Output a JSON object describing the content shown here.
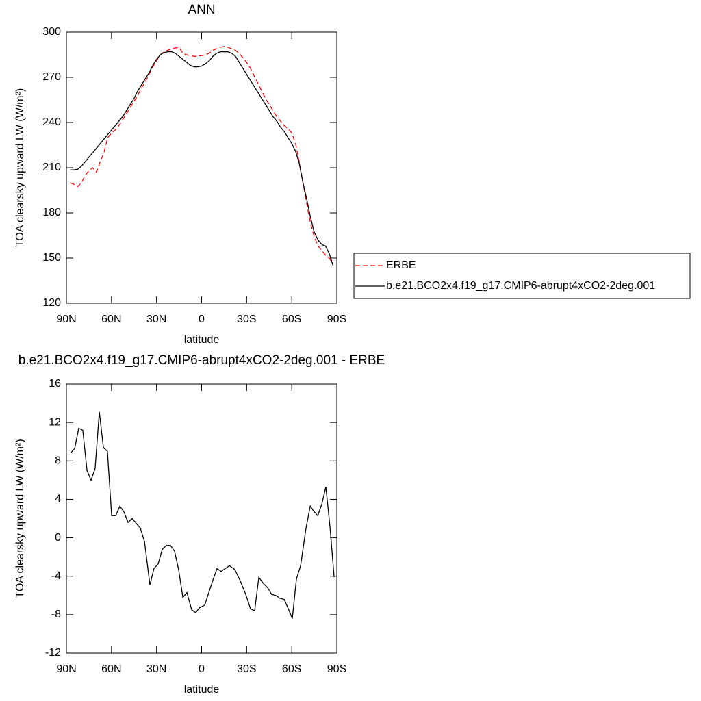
{
  "chart_data": [
    {
      "type": "line",
      "title": "ANN",
      "x_label": "latitude",
      "y_label": "TOA clearsky upward LW (W/m²)",
      "x": [
        87.5,
        85,
        82.5,
        80,
        77.5,
        75,
        72.5,
        70,
        67.5,
        65,
        62.5,
        60,
        57.5,
        55,
        52.5,
        50,
        47.5,
        45,
        42.5,
        40,
        37.5,
        35,
        32.5,
        30,
        27.5,
        25,
        22.5,
        20,
        17.5,
        15,
        12.5,
        10,
        7.5,
        5,
        2.5,
        0,
        -2.5,
        -5,
        -7.5,
        -10,
        -12.5,
        -15,
        -17.5,
        -20,
        -22.5,
        -25,
        -27.5,
        -30,
        -32.5,
        -35,
        -37.5,
        -40,
        -42.5,
        -45,
        -47.5,
        -50,
        -52.5,
        -55,
        -57.5,
        -60,
        -62.5,
        -65,
        -67.5,
        -70,
        -72.5,
        -75,
        -77.5,
        -80,
        -82.5,
        -85,
        -87.5
      ],
      "series": [
        {
          "name": "ERBE",
          "color": "#ff0000",
          "linestyle": "dashed",
          "values": [
            200,
            199,
            197.5,
            200,
            205,
            208,
            210,
            207,
            214,
            220,
            230,
            233,
            235,
            238,
            242,
            246,
            250,
            254,
            258,
            263,
            267,
            272,
            277,
            281,
            285,
            287,
            288,
            289,
            289.5,
            290,
            286,
            285,
            284.5,
            284,
            284,
            284.5,
            285,
            286,
            288,
            289,
            290,
            290.5,
            290,
            289,
            288,
            286,
            283,
            280,
            276,
            271,
            266,
            261,
            256,
            252,
            248,
            244,
            241,
            238,
            236,
            233,
            226,
            214,
            200,
            186,
            173,
            164,
            158,
            155,
            152,
            150,
            146
          ]
        },
        {
          "name": "b.e21.BCO2x4.f19_g17.CMIP6-abrupt4xCO2-2deg.001",
          "color": "#000000",
          "linestyle": "solid",
          "values": [
            208.6,
            208.6,
            209,
            211,
            214,
            217,
            220,
            223,
            226,
            229,
            232,
            235,
            238,
            241,
            244,
            248,
            252,
            256,
            261,
            265,
            269,
            273,
            278,
            282,
            285,
            286.5,
            287,
            287,
            286,
            284,
            282,
            280,
            278,
            277,
            277,
            277.5,
            279,
            281,
            284,
            286,
            287,
            287,
            287,
            286,
            284,
            280,
            276,
            272,
            268,
            264,
            260,
            256,
            252,
            248,
            244,
            241,
            237,
            234,
            230,
            226,
            221,
            213,
            200,
            189,
            177,
            167,
            162,
            159,
            158,
            153,
            145
          ]
        }
      ],
      "xlim": [
        90,
        -90
      ],
      "xticks": [
        {
          "value": 90,
          "label": "90N"
        },
        {
          "value": 60,
          "label": "60N"
        },
        {
          "value": 30,
          "label": "30N"
        },
        0,
        {
          "value": -30,
          "label": "30S"
        },
        {
          "value": -60,
          "label": "60S"
        },
        {
          "value": -90,
          "label": "90S"
        }
      ],
      "ylim": [
        120,
        300
      ],
      "yticks": [
        120,
        150,
        180,
        210,
        240,
        270,
        300
      ],
      "legend": "outside-right"
    },
    {
      "type": "line",
      "title": "b.e21.BCO2x4.f19_g17.CMIP6-abrupt4xCO2-2deg.001 - ERBE",
      "x_label": "latitude",
      "y_label": "TOA clearsky upward LW (W/m²)",
      "x": [
        87.3,
        84.5,
        81.8,
        79.1,
        76.3,
        73.6,
        70.9,
        68.1,
        65.4,
        62.7,
        59.9,
        57.2,
        54.4,
        51.7,
        49.0,
        46.2,
        43.5,
        40.8,
        38.0,
        34.4,
        31.7,
        28.9,
        26.2,
        23.5,
        20.7,
        18.0,
        15.3,
        12.5,
        9.8,
        6.6,
        3.9,
        1.6,
        -2.1,
        -4.8,
        -7.5,
        -10.3,
        -13.0,
        -15.7,
        -18.5,
        -22.1,
        -25.8,
        -29.4,
        -32.6,
        -35.3,
        -38.1,
        -40.8,
        -44.0,
        -46.7,
        -49.5,
        -52.2,
        -54.9,
        -57.2,
        -60.4,
        -63.1,
        -65.9,
        -69.5,
        -72.3,
        -74.5,
        -77.3,
        -80.0,
        -82.7,
        -85.5,
        -88.2
      ],
      "color": "#000000",
      "values": [
        8.8,
        9.3,
        11.4,
        11.2,
        7.0,
        6.0,
        7.2,
        13.1,
        9.4,
        9.0,
        2.3,
        2.3,
        3.3,
        2.7,
        1.6,
        2.0,
        1.5,
        1.0,
        -0.4,
        -4.9,
        -3.2,
        -2.7,
        -1.2,
        -0.8,
        -0.8,
        -1.4,
        -3.3,
        -6.2,
        -5.7,
        -7.5,
        -7.8,
        -7.3,
        -7.0,
        -5.7,
        -4.4,
        -3.2,
        -3.5,
        -3.2,
        -2.9,
        -3.3,
        -4.5,
        -5.9,
        -7.4,
        -7.6,
        -4.1,
        -4.7,
        -5.2,
        -5.9,
        -6.0,
        -6.3,
        -6.4,
        -7.2,
        -8.4,
        -4.3,
        -2.9,
        1.0,
        3.3,
        2.8,
        2.3,
        3.5,
        5.3,
        1.1,
        -4.1
      ],
      "xlim": [
        90,
        -90
      ],
      "xticks": [
        {
          "value": 90,
          "label": "90N"
        },
        {
          "value": 60,
          "label": "60N"
        },
        {
          "value": 30,
          "label": "30N"
        },
        0,
        {
          "value": -30,
          "label": "30S"
        },
        {
          "value": -60,
          "label": "60S"
        },
        {
          "value": -90,
          "label": "90S"
        }
      ],
      "ylim": [
        -12,
        16
      ],
      "yticks": [
        -12,
        -8,
        -4,
        0,
        4,
        8,
        12,
        16
      ]
    }
  ]
}
